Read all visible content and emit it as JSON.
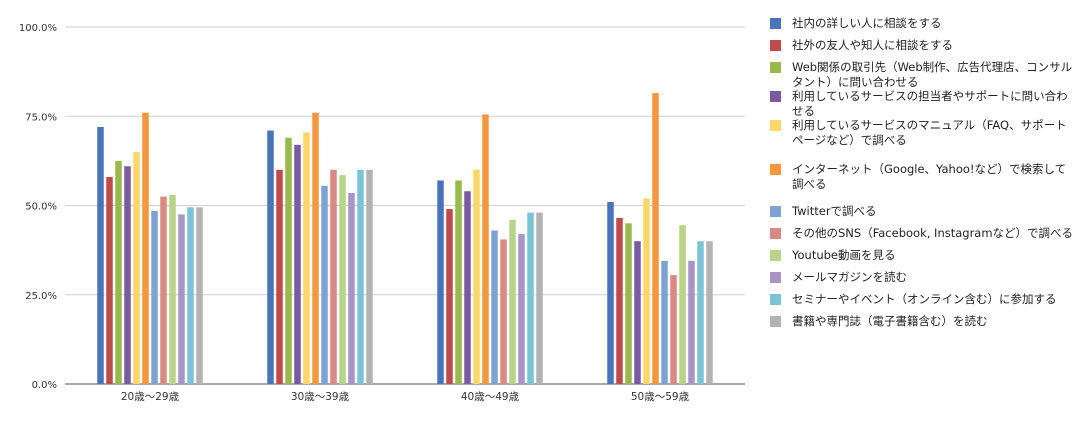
{
  "chart_data": {
    "type": "bar",
    "title": "",
    "xlabel": "",
    "ylabel": "",
    "ylim": [
      0,
      100
    ],
    "y_ticks": [
      "100.0%",
      "75.0%",
      "50.0%",
      "25.0%",
      "0.0%"
    ],
    "grid": true,
    "legend_position": "right",
    "categories": [
      "20歳～29歳",
      "30歳～39歳",
      "40歳～49歳",
      "50歳～59歳"
    ],
    "series": [
      {
        "name": "社内の詳しい人に相談をする",
        "color": "#4a74b9",
        "values": [
          72,
          71,
          57,
          51
        ]
      },
      {
        "name": "社外の友人や知人に相談をする",
        "color": "#bf4b4b",
        "values": [
          58,
          60,
          49,
          46.5
        ]
      },
      {
        "name": "Web関係の取引先（Web制作、広告代理店、コンサルタント）に問い合わせる",
        "color": "#99b94f",
        "values": [
          62.5,
          69,
          57,
          45
        ]
      },
      {
        "name": "利用しているサービスの担当者やサポートに問い合わせる",
        "color": "#7b5aa2",
        "values": [
          61,
          67,
          54,
          40
        ]
      },
      {
        "name": "利用しているサービスのマニュアル（FAQ、サポートページなど）で調べる",
        "color": "#fdd76a",
        "values": [
          65,
          70.5,
          60,
          52
        ]
      },
      {
        "name": "インターネット（Google、Yahoo!など）で検索して調べる",
        "color": "#f6973e",
        "values": [
          76,
          76,
          75.5,
          81.5
        ]
      },
      {
        "name": "Twitterで調べる",
        "color": "#7ea2d4",
        "values": [
          48.5,
          55.5,
          43,
          34.5
        ]
      },
      {
        "name": "その他のSNS（Facebook, Instagramなど）で調べる",
        "color": "#d88a84",
        "values": [
          52.5,
          60,
          40.5,
          30.5
        ]
      },
      {
        "name": "Youtube動画を見る",
        "color": "#b9d48a",
        "values": [
          53,
          58.5,
          46,
          44.5
        ]
      },
      {
        "name": "メールマガジンを読む",
        "color": "#a894c6",
        "values": [
          47.5,
          53.5,
          42,
          34.5
        ]
      },
      {
        "name": "セミナーやイベント（オンライン含む）に参加する",
        "color": "#7cc3d8",
        "values": [
          49.5,
          60,
          48,
          40
        ]
      },
      {
        "name": "書籍や専門誌（電子書籍含む）を読む",
        "color": "#b3b3b3",
        "values": [
          49.5,
          60,
          48,
          40
        ]
      }
    ]
  }
}
